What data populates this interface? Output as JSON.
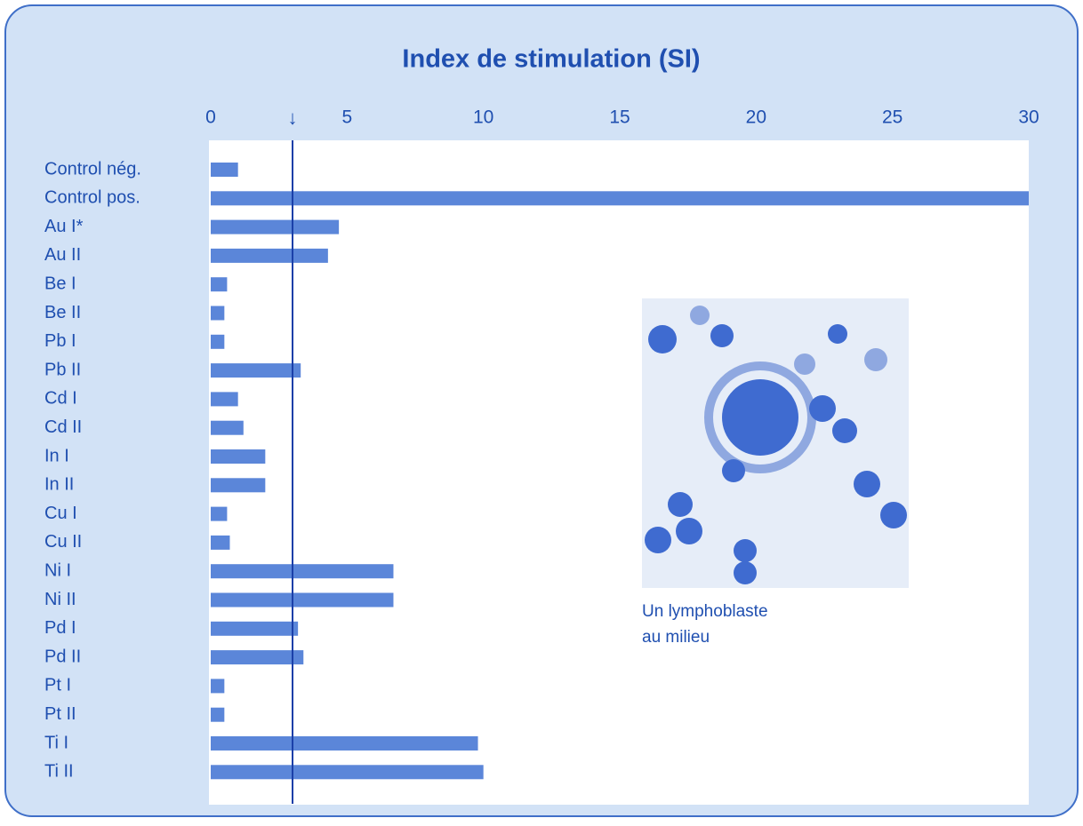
{
  "chart_data": {
    "type": "bar",
    "orientation": "horizontal",
    "title": "Index de stimulation (SI)",
    "categories": [
      "Control nég.",
      "Control pos.",
      "Au I*",
      "Au II",
      "Be I",
      "Be II",
      "Pb I",
      "Pb II",
      "Cd I",
      "Cd II",
      "In I",
      "In II",
      "Cu I",
      "Cu II",
      "Ni I",
      "Ni II",
      "Pd I",
      "Pd II",
      "Pt I",
      "Pt II",
      "Ti I",
      "Ti II"
    ],
    "values": [
      1.0,
      30,
      4.7,
      4.3,
      0.6,
      0.5,
      0.5,
      3.3,
      1.0,
      1.2,
      2.0,
      2.0,
      0.6,
      0.7,
      6.7,
      6.7,
      3.2,
      3.4,
      0.5,
      0.5,
      9.8,
      10.0
    ],
    "color": "#5b86d9",
    "xlim": [
      0,
      30
    ],
    "xticks": [
      0,
      5,
      10,
      15,
      20,
      25,
      30
    ],
    "threshold": {
      "value": 3,
      "label": "↓"
    },
    "grid": false,
    "image_caption": [
      "Un lymphoblaste",
      "au milieu"
    ]
  }
}
